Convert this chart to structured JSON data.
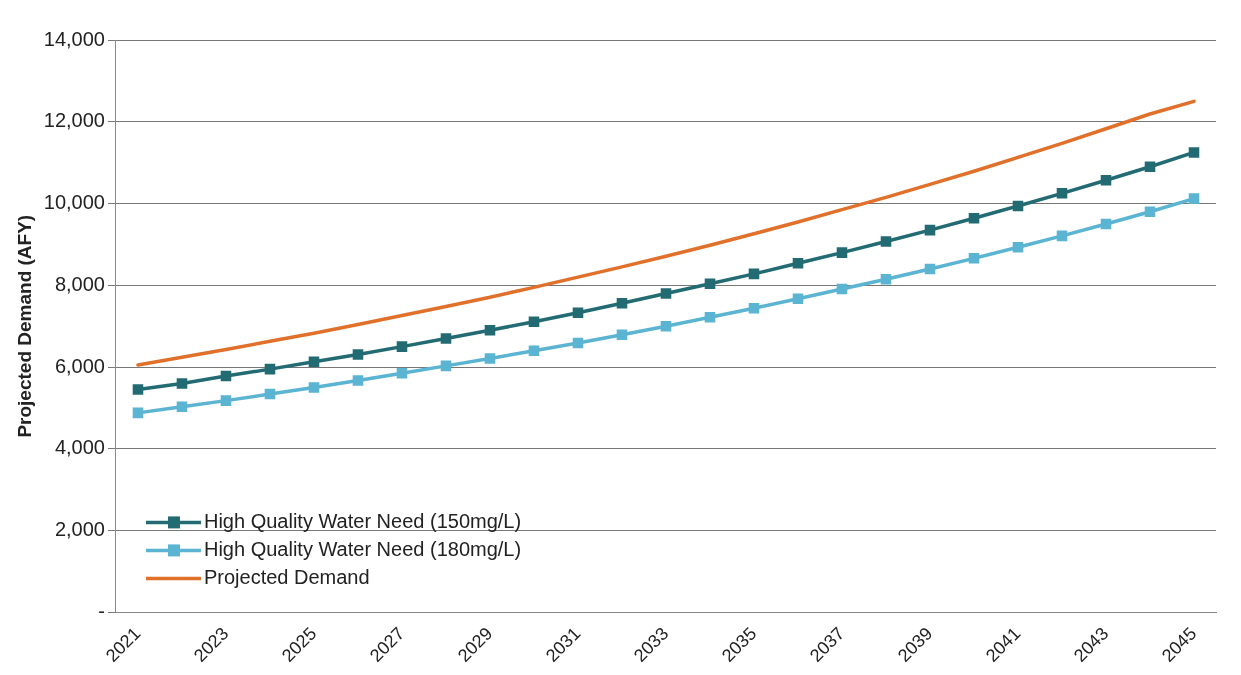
{
  "chart_data": {
    "type": "line",
    "ylabel": "Projected Demand (AFY)",
    "categories": [
      "2021",
      null,
      "2023",
      null,
      "2025",
      null,
      "2027",
      null,
      "2029",
      null,
      "2031",
      null,
      "2033",
      null,
      "2035",
      null,
      "2037",
      null,
      "2039",
      null,
      "2041",
      null,
      "2043",
      null,
      "2045"
    ],
    "series": [
      {
        "name": "High Quality Water Need (150mg/L)",
        "color": "#236b73",
        "marker": "square",
        "values": [
          5450,
          5600,
          5780,
          5950,
          6130,
          6310,
          6500,
          6700,
          6900,
          7110,
          7330,
          7560,
          7800,
          8040,
          8280,
          8540,
          8800,
          9070,
          9350,
          9640,
          9940,
          10250,
          10570,
          10900,
          11250
        ]
      },
      {
        "name": "High Quality Water Need (180mg/L)",
        "color": "#5ab4d2",
        "marker": "square",
        "values": [
          4880,
          5030,
          5180,
          5340,
          5500,
          5670,
          5850,
          6030,
          6210,
          6400,
          6590,
          6790,
          7000,
          7220,
          7440,
          7670,
          7910,
          8150,
          8400,
          8660,
          8930,
          9210,
          9500,
          9800,
          10120
        ]
      },
      {
        "name": "Projected Demand",
        "color": "#e0702a",
        "marker": "none",
        "values": [
          6050,
          6240,
          6430,
          6630,
          6830,
          7040,
          7260,
          7480,
          7710,
          7950,
          8200,
          8450,
          8710,
          8980,
          9260,
          9550,
          9850,
          10150,
          10470,
          10790,
          11130,
          11470,
          11830,
          12190,
          12500
        ]
      }
    ],
    "ylim": [
      0,
      14000
    ],
    "yticks": [
      {
        "value": 0,
        "label": "-"
      },
      {
        "value": 2000,
        "label": "2,000"
      },
      {
        "value": 4000,
        "label": "4,000"
      },
      {
        "value": 6000,
        "label": "6,000"
      },
      {
        "value": 8000,
        "label": "8,000"
      },
      {
        "value": 10000,
        "label": "10,000"
      },
      {
        "value": 12000,
        "label": "12,000"
      },
      {
        "value": 14000,
        "label": "14,000"
      }
    ],
    "grid": "y",
    "legend": "bottom left",
    "line_style": "solid"
  }
}
